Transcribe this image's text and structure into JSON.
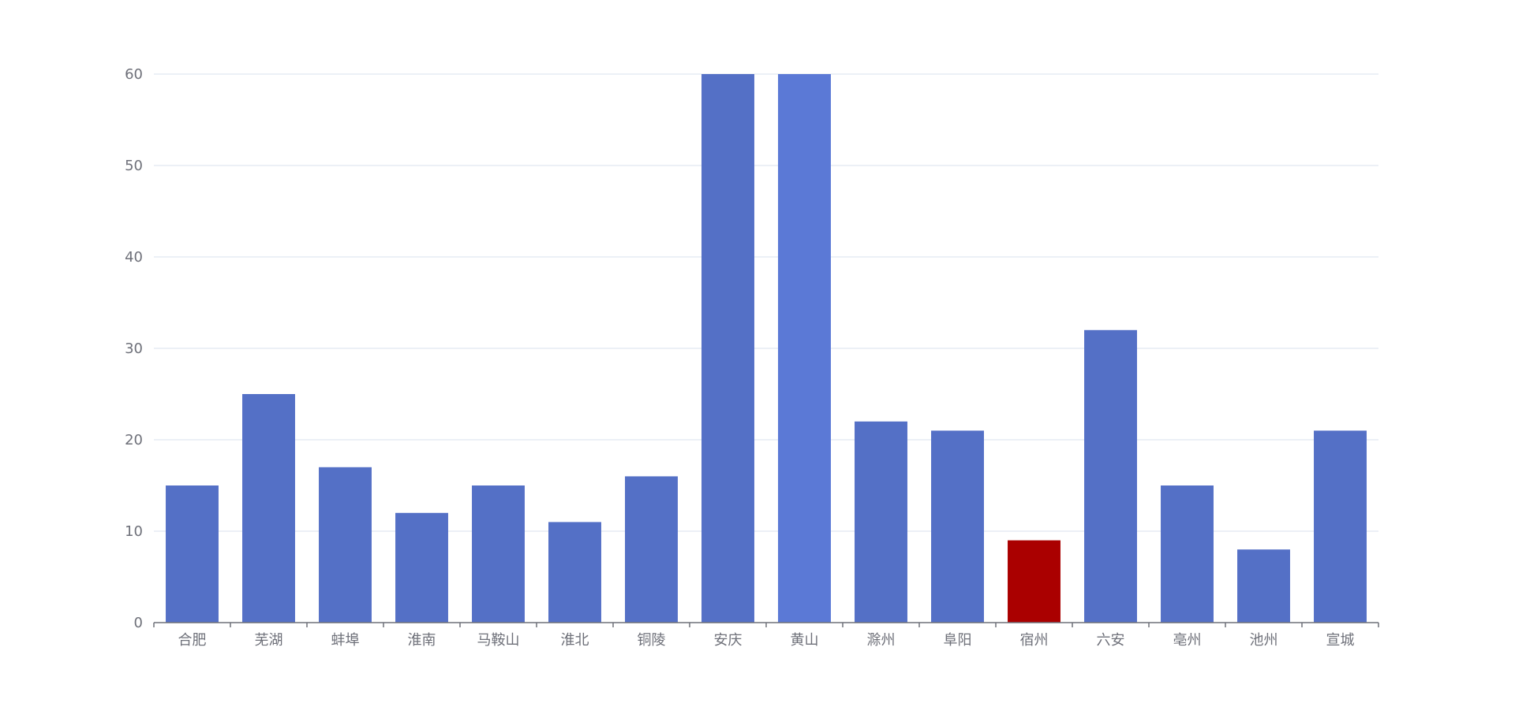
{
  "chart_data": {
    "type": "bar",
    "categories": [
      "合肥",
      "芜湖",
      "蚌埠",
      "淮南",
      "马鞍山",
      "淮北",
      "铜陵",
      "安庆",
      "黄山",
      "滁州",
      "阜阳",
      "宿州",
      "六安",
      "亳州",
      "池州",
      "宣城"
    ],
    "values": [
      15,
      25,
      17,
      12,
      15,
      11,
      16,
      60,
      60,
      22,
      21,
      9,
      32,
      15,
      8,
      21
    ],
    "ylim": [
      0,
      60
    ],
    "yticks": [
      0,
      10,
      20,
      30,
      40,
      50,
      60
    ],
    "grid": true,
    "colors": {
      "bar": "#5470c6",
      "highlight": "#aa0000",
      "hover": "#5b79d6",
      "grid": "#e0e6f1",
      "axis": "#6e7079"
    },
    "highlight_category": "宿州",
    "hover_category": "黄山"
  }
}
